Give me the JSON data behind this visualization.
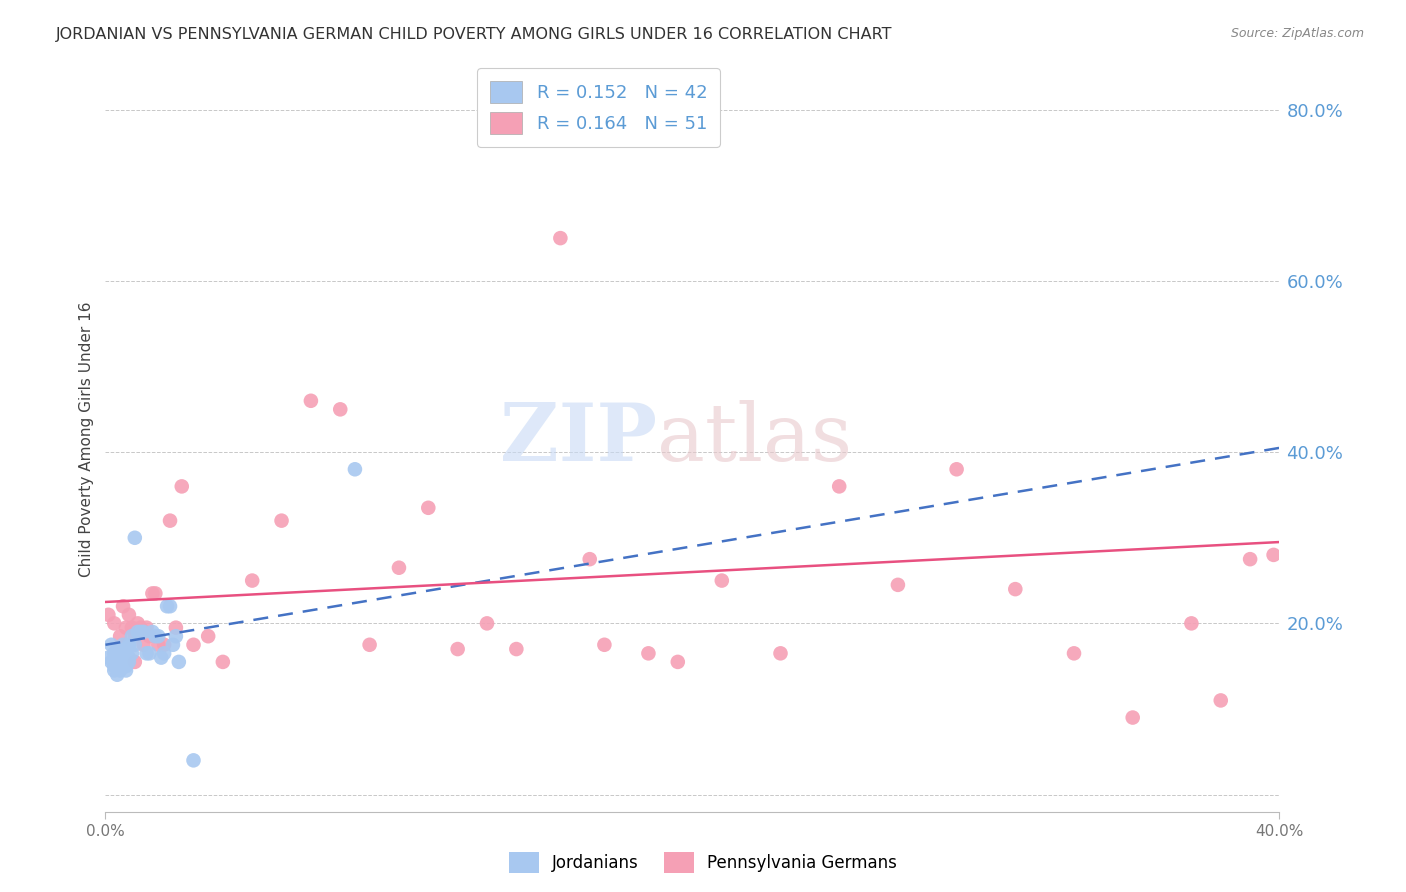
{
  "title": "JORDANIAN VS PENNSYLVANIA GERMAN CHILD POVERTY AMONG GIRLS UNDER 16 CORRELATION CHART",
  "source": "Source: ZipAtlas.com",
  "ylabel": "Child Poverty Among Girls Under 16",
  "xlim": [
    0.0,
    0.4
  ],
  "ylim": [
    -0.02,
    0.85
  ],
  "yticks": [
    0.0,
    0.2,
    0.4,
    0.6,
    0.8
  ],
  "ytick_labels": [
    "",
    "20.0%",
    "40.0%",
    "60.0%",
    "80.0%"
  ],
  "xticks": [
    0.0,
    0.4
  ],
  "xtick_labels": [
    "0.0%",
    "40.0%"
  ],
  "background_color": "#ffffff",
  "grid_color": "#c8c8c8",
  "title_color": "#333333",
  "right_axis_color": "#5b9bd5",
  "jordanian_color": "#a8c8f0",
  "pa_german_color": "#f5a0b5",
  "trend_jordan_color": "#4472c4",
  "trend_pa_color": "#e85080",
  "jordanian_x": [
    0.001,
    0.002,
    0.002,
    0.003,
    0.003,
    0.003,
    0.004,
    0.004,
    0.004,
    0.005,
    0.005,
    0.005,
    0.006,
    0.006,
    0.006,
    0.007,
    0.007,
    0.007,
    0.008,
    0.008,
    0.008,
    0.009,
    0.009,
    0.01,
    0.01,
    0.011,
    0.012,
    0.013,
    0.014,
    0.015,
    0.016,
    0.017,
    0.018,
    0.019,
    0.02,
    0.021,
    0.022,
    0.023,
    0.024,
    0.025,
    0.03,
    0.085
  ],
  "jordanian_y": [
    0.16,
    0.155,
    0.175,
    0.15,
    0.165,
    0.145,
    0.155,
    0.14,
    0.17,
    0.155,
    0.165,
    0.145,
    0.16,
    0.175,
    0.15,
    0.165,
    0.15,
    0.145,
    0.175,
    0.16,
    0.155,
    0.185,
    0.165,
    0.175,
    0.3,
    0.19,
    0.19,
    0.19,
    0.165,
    0.165,
    0.19,
    0.185,
    0.185,
    0.16,
    0.165,
    0.22,
    0.22,
    0.175,
    0.185,
    0.155,
    0.04,
    0.38
  ],
  "pa_german_x": [
    0.001,
    0.003,
    0.005,
    0.006,
    0.007,
    0.008,
    0.009,
    0.01,
    0.01,
    0.011,
    0.012,
    0.013,
    0.014,
    0.015,
    0.016,
    0.017,
    0.018,
    0.02,
    0.022,
    0.024,
    0.026,
    0.03,
    0.035,
    0.04,
    0.05,
    0.06,
    0.07,
    0.08,
    0.09,
    0.1,
    0.11,
    0.12,
    0.13,
    0.14,
    0.155,
    0.165,
    0.17,
    0.185,
    0.195,
    0.21,
    0.23,
    0.25,
    0.27,
    0.29,
    0.31,
    0.33,
    0.35,
    0.37,
    0.38,
    0.39,
    0.398
  ],
  "pa_german_y": [
    0.21,
    0.2,
    0.185,
    0.22,
    0.195,
    0.21,
    0.195,
    0.185,
    0.155,
    0.2,
    0.195,
    0.175,
    0.195,
    0.185,
    0.235,
    0.235,
    0.175,
    0.175,
    0.32,
    0.195,
    0.36,
    0.175,
    0.185,
    0.155,
    0.25,
    0.32,
    0.46,
    0.45,
    0.175,
    0.265,
    0.335,
    0.17,
    0.2,
    0.17,
    0.65,
    0.275,
    0.175,
    0.165,
    0.155,
    0.25,
    0.165,
    0.36,
    0.245,
    0.38,
    0.24,
    0.165,
    0.09,
    0.2,
    0.11,
    0.275,
    0.28
  ],
  "trend_jordan_start_y": 0.175,
  "trend_jordan_end_y": 0.405,
  "trend_pa_start_y": 0.225,
  "trend_pa_end_y": 0.295
}
